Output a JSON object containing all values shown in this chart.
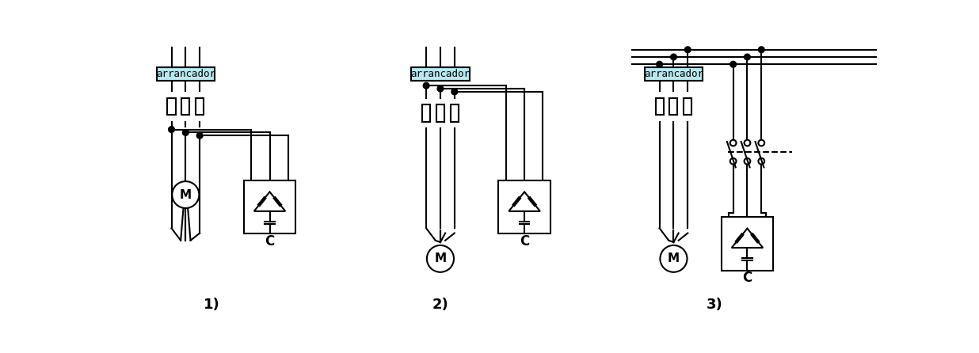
{
  "bg_color": "#ffffff",
  "line_color": "#000000",
  "arrancador_bg": "#b8e8f0",
  "arrancador_text": "arrancador",
  "arrancador_fontsize": 10,
  "label_1": "1)",
  "label_2": "2)",
  "label_3": "3)",
  "label_C": "C",
  "label_M": "M",
  "fig_width": 12.36,
  "fig_height": 4.46
}
